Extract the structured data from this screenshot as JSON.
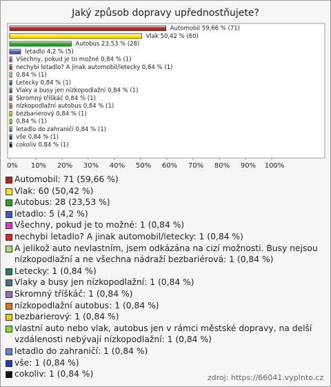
{
  "chart_data": {
    "type": "bar",
    "orientation": "horizontal",
    "title": "Jaký způsob dopravy upřednostňujete?",
    "values": [
      59.66,
      50.42,
      23.53,
      4.2,
      0.84,
      0.84,
      0.84,
      0.84,
      0.84,
      0.84,
      0.84,
      0.84,
      0.84,
      0.84,
      0.84,
      0.84
    ],
    "value_labels": [
      "Automobil 59,66 % (71)",
      "Vlak 50,42 % (60)",
      "Autobus 23,53 % (28)",
      "letadlo 4,2 % (5)",
      "Všechny, pokud je to možné 0,84 % (1)",
      "nechybi letadlo? A jinak automobil/letecky 0,84 % (1)",
      "0,84 % (1)",
      "Letecky 0,84 % (1)",
      "Vlaky a busy jen nízkopodlažní 0,84 % (1)",
      "Skromný tříškáč 0,84 % (1)",
      "nízkopodlažní autobus 0,84 % (1)",
      "bezbarierový 0,84 % (1)",
      "0,84 % (1)",
      "letadlo do zahraničí 0,84 % (1)",
      "vše 0,84 % (1)",
      "cokoliv 0,84 % (1)"
    ],
    "legend_labels": [
      "Automobil: 71 (59,66 %)",
      "Vlak: 60 (50,42 %)",
      "Autobus: 28 (23,53 %)",
      "letadlo: 5 (4,2 %)",
      "Všechny, pokud je to možné: 1 (0,84 %)",
      "nechybi letadlo? A jinak automobil/letecky: 1 (0,84 %)",
      "A jelikož auto nevlastním, jsem odkázána na cizí možnosti. Busy nejsou nízkopodlažní a ne všechna nádraží bezbariérová: 1 (0,84 %)",
      "Letecky: 1 (0,84 %)",
      "Vlaky a busy jen nízkopodlažní: 1 (0,84 %)",
      "Skromný tříškáč: 1 (0,84 %)",
      "nízkopodlažní autobus: 1 (0,84 %)",
      "bezbarierový: 1 (0,84 %)",
      "vlastní auto nebo vlak, autobus jen v rámci městské dopravy, na delší vzdálenosti nebývají nízkopodlažní: 1 (0,84 %)",
      "letadlo do zahraničí: 1 (0,84 %)",
      "vše: 1 (0,84 %)",
      "cokoliv: 1 (0,84 %)"
    ],
    "colors": [
      "#b3261e",
      "#ffe600",
      "#2ca02c",
      "#3a5bd0",
      "#d23ad2",
      "#e02828",
      "#a6e070",
      "#21806a",
      "#43728a",
      "#a266c6",
      "#e0741e",
      "#e8c800",
      "#7fe02a",
      "#5f82d6",
      "#1f3cc0",
      "#111111"
    ],
    "xlim": [
      0,
      120
    ],
    "xticks": [
      {
        "value": 0,
        "label": "0%"
      },
      {
        "value": 10,
        "label": "10%"
      },
      {
        "value": 20,
        "label": "20%"
      },
      {
        "value": 30,
        "label": "30%"
      },
      {
        "value": 40,
        "label": "40%"
      },
      {
        "value": 50,
        "label": "50%"
      },
      {
        "value": 60,
        "label": "60%"
      },
      {
        "value": 70,
        "label": "70%"
      },
      {
        "value": 80,
        "label": "80%"
      },
      {
        "value": 90,
        "label": "90%"
      },
      {
        "value": 100,
        "label": "100%"
      }
    ],
    "source": "zdroj: https://66041.vyplnto.cz"
  }
}
